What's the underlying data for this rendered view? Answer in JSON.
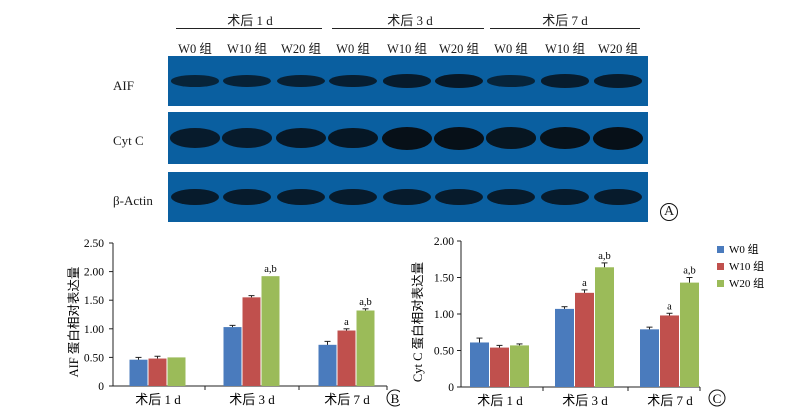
{
  "blot": {
    "groups": [
      "术后 1 d",
      "术后 3 d",
      "术后 7 d"
    ],
    "lanes": [
      "W0 组",
      "W10 组",
      "W20 组",
      "W0 组",
      "W10 组",
      "W20 组",
      "W0 组",
      "W10 组",
      "W20 组"
    ],
    "rows": [
      "AIF",
      "Cyt C",
      "β-Actin"
    ],
    "band_intensity": {
      "AIF": [
        0.45,
        0.5,
        0.55,
        0.6,
        0.7,
        0.75,
        0.45,
        0.65,
        0.7
      ],
      "Cyt C": [
        0.7,
        0.7,
        0.75,
        0.8,
        1.0,
        1.0,
        0.85,
        0.95,
        1.0
      ],
      "β-Actin": [
        0.7,
        0.7,
        0.7,
        0.7,
        0.7,
        0.7,
        0.7,
        0.7,
        0.7
      ]
    },
    "panel_label": "A",
    "band_color": "#071018",
    "membrane_color": "#0a5fa0"
  },
  "chart_data": [
    {
      "type": "bar",
      "panel_label": "B",
      "ylabel": "AIF 蛋白相对表达量",
      "categories": [
        "术后 1 d",
        "术后 3 d",
        "术后 7 d"
      ],
      "ylim": [
        0,
        2.5
      ],
      "yticks": [
        "0",
        "0.50",
        "1.00",
        "1.50",
        "2.00",
        "2.50"
      ],
      "series": [
        {
          "name": "W0 组",
          "values": [
            0.46,
            1.03,
            0.72
          ],
          "errors": [
            0.04,
            0.03,
            0.06
          ],
          "marks": [
            "",
            "",
            ""
          ]
        },
        {
          "name": "W10 组",
          "values": [
            0.48,
            1.55,
            0.97
          ],
          "errors": [
            0.04,
            0.03,
            0.03
          ],
          "marks": [
            "",
            "",
            "a"
          ]
        },
        {
          "name": "W20 组",
          "values": [
            0.5,
            1.92,
            1.32
          ],
          "errors": [
            0.0,
            0.0,
            0.03
          ],
          "marks": [
            "",
            "a,b",
            "a,b"
          ]
        }
      ]
    },
    {
      "type": "bar",
      "panel_label": "C",
      "ylabel": "Cyt C 蛋白相对表达量",
      "categories": [
        "术后 1 d",
        "术后 3 d",
        "术后 7 d"
      ],
      "ylim": [
        0,
        2.0
      ],
      "yticks": [
        "0",
        "0.50",
        "1.00",
        "1.50",
        "2.00"
      ],
      "legend": [
        "W0 组",
        "W10 组",
        "W20 组"
      ],
      "series": [
        {
          "name": "W0 组",
          "values": [
            0.61,
            1.07,
            0.79
          ],
          "errors": [
            0.06,
            0.03,
            0.03
          ],
          "marks": [
            "",
            "",
            ""
          ]
        },
        {
          "name": "W10 组",
          "values": [
            0.54,
            1.29,
            0.98
          ],
          "errors": [
            0.03,
            0.04,
            0.03
          ],
          "marks": [
            "",
            "a",
            "a"
          ]
        },
        {
          "name": "W20 组",
          "values": [
            0.57,
            1.64,
            1.43
          ],
          "errors": [
            0.02,
            0.06,
            0.07
          ],
          "marks": [
            "",
            "a,b",
            "a,b"
          ]
        }
      ]
    }
  ],
  "colors": {
    "W0": "#4a7bbd",
    "W10": "#c0504d",
    "W20": "#9bbb59"
  }
}
